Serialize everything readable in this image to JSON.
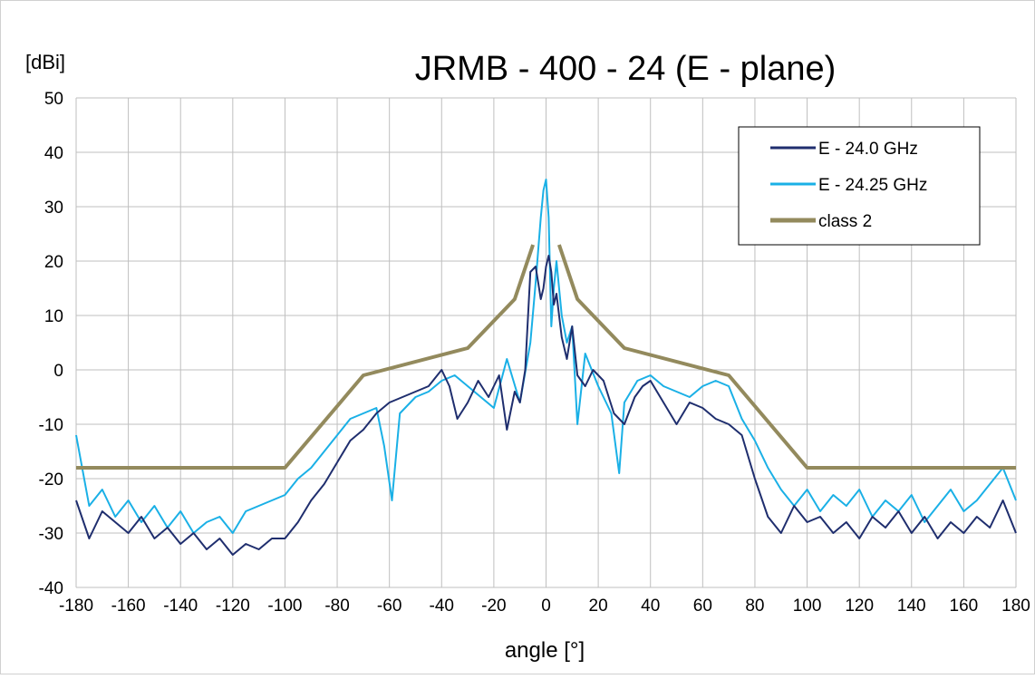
{
  "chart_data": {
    "type": "line",
    "title": "JRMB - 400 - 24 (E - plane)",
    "ylabel": "[dBi]",
    "xlabel": "angle [°]",
    "xlim": [
      -180,
      180
    ],
    "ylim": [
      -40,
      50
    ],
    "xticks": [
      -180,
      -160,
      -140,
      -120,
      -100,
      -80,
      -60,
      -40,
      -20,
      0,
      20,
      40,
      60,
      80,
      100,
      120,
      140,
      160,
      180
    ],
    "yticks": [
      -40,
      -30,
      -20,
      -10,
      0,
      10,
      20,
      30,
      40,
      50
    ],
    "xtick_labels": [
      "-180",
      "-160",
      "-140",
      "-120",
      "-100",
      "-80",
      "-60",
      "-40",
      "-20",
      "0",
      "20",
      "40",
      "60",
      "80",
      "100",
      "120",
      "140",
      "160",
      "180"
    ],
    "ytick_labels": [
      "-40",
      "-30",
      "-20",
      "-10",
      "0",
      "10",
      "20",
      "30",
      "40",
      "50"
    ],
    "grid": true,
    "legend_position": "top-right",
    "series": [
      {
        "name": "E - 24.0 GHz",
        "color": "#1f2e6e",
        "x": [
          -180,
          -175,
          -170,
          -165,
          -160,
          -155,
          -150,
          -145,
          -140,
          -135,
          -130,
          -125,
          -120,
          -115,
          -110,
          -105,
          -100,
          -95,
          -90,
          -85,
          -80,
          -75,
          -70,
          -65,
          -60,
          -55,
          -50,
          -45,
          -40,
          -37,
          -34,
          -30,
          -26,
          -22,
          -18,
          -15,
          -12,
          -10,
          -8,
          -6,
          -4,
          -3,
          -2,
          -1,
          0,
          1,
          2,
          3,
          4,
          6,
          8,
          10,
          12,
          15,
          18,
          22,
          26,
          30,
          34,
          37,
          40,
          45,
          50,
          55,
          60,
          65,
          70,
          75,
          80,
          85,
          90,
          95,
          100,
          105,
          110,
          115,
          120,
          125,
          130,
          135,
          140,
          145,
          150,
          155,
          160,
          165,
          170,
          175,
          180
        ],
        "y": [
          -24,
          -31,
          -26,
          -28,
          -30,
          -27,
          -31,
          -29,
          -32,
          -30,
          -33,
          -31,
          -34,
          -32,
          -33,
          -31,
          -31,
          -28,
          -24,
          -21,
          -17,
          -13,
          -11,
          -8,
          -6,
          -5,
          -4,
          -3,
          0,
          -3,
          -9,
          -6,
          -2,
          -5,
          -1,
          -11,
          -4,
          -6,
          0,
          18,
          19,
          16,
          13,
          15,
          19,
          21,
          18,
          12,
          14,
          6,
          2,
          8,
          -1,
          -3,
          0,
          -2,
          -8,
          -10,
          -5,
          -3,
          -2,
          -6,
          -10,
          -6,
          -7,
          -9,
          -10,
          -12,
          -20,
          -27,
          -30,
          -25,
          -28,
          -27,
          -30,
          -28,
          -31,
          -27,
          -29,
          -26,
          -30,
          -27,
          -31,
          -28,
          -30,
          -27,
          -29,
          -24,
          -30
        ]
      },
      {
        "name": "E - 24.25 GHz",
        "color": "#1ab0e6",
        "x": [
          -180,
          -175,
          -170,
          -165,
          -160,
          -155,
          -150,
          -145,
          -140,
          -135,
          -130,
          -125,
          -120,
          -115,
          -110,
          -105,
          -100,
          -95,
          -90,
          -85,
          -80,
          -75,
          -70,
          -65,
          -62,
          -59,
          -56,
          -50,
          -45,
          -40,
          -35,
          -30,
          -25,
          -20,
          -15,
          -10,
          -6,
          -4,
          -2,
          -1,
          0,
          1,
          2,
          3,
          4,
          6,
          8,
          10,
          12,
          15,
          20,
          25,
          28,
          30,
          35,
          40,
          45,
          50,
          55,
          60,
          65,
          70,
          75,
          80,
          85,
          90,
          95,
          100,
          105,
          110,
          115,
          120,
          125,
          130,
          135,
          140,
          145,
          150,
          155,
          160,
          165,
          170,
          175,
          180
        ],
        "y": [
          -12,
          -25,
          -22,
          -27,
          -24,
          -28,
          -25,
          -29,
          -26,
          -30,
          -28,
          -27,
          -30,
          -26,
          -25,
          -24,
          -23,
          -20,
          -18,
          -15,
          -12,
          -9,
          -8,
          -7,
          -14,
          -24,
          -8,
          -5,
          -4,
          -2,
          -1,
          -3,
          -5,
          -7,
          2,
          -6,
          5,
          16,
          28,
          33,
          35,
          28,
          8,
          15,
          20,
          10,
          5,
          8,
          -10,
          3,
          -3,
          -8,
          -19,
          -6,
          -2,
          -1,
          -3,
          -4,
          -5,
          -3,
          -2,
          -3,
          -9,
          -13,
          -18,
          -22,
          -25,
          -22,
          -26,
          -23,
          -25,
          -22,
          -27,
          -24,
          -26,
          -23,
          -28,
          -25,
          -22,
          -26,
          -24,
          -21,
          -18,
          -24
        ]
      },
      {
        "name": "class 2",
        "color": "#938a5d",
        "segments": [
          {
            "x": [
              -180,
              -100,
              -70,
              -30,
              -12,
              -5
            ],
            "y": [
              -18,
              -18,
              -1,
              4,
              13,
              23
            ]
          },
          {
            "x": [
              5,
              12,
              30,
              70,
              100,
              180
            ],
            "y": [
              23,
              13,
              4,
              -1,
              -18,
              -18
            ]
          }
        ]
      }
    ]
  }
}
